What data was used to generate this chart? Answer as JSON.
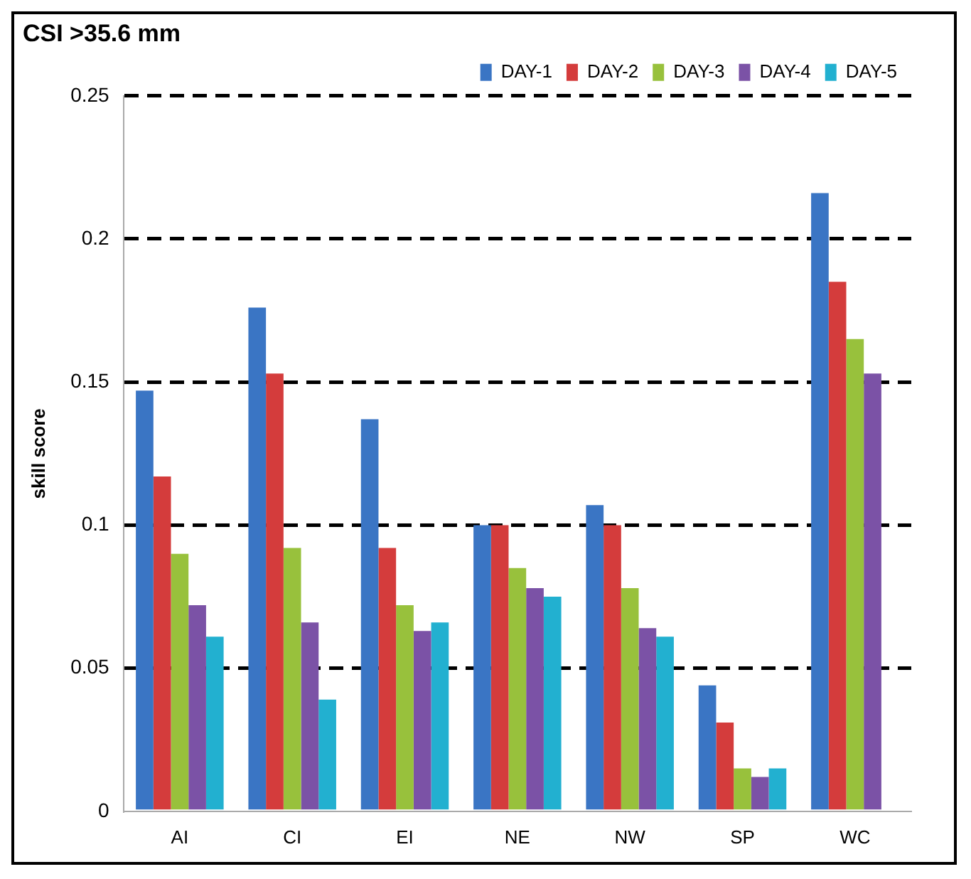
{
  "chart_data": {
    "type": "bar",
    "title": "CSI >35.6 mm",
    "ylabel": "skill score",
    "categories": [
      "AI",
      "CI",
      "EI",
      "NE",
      "NW",
      "SP",
      "WC"
    ],
    "series": [
      {
        "name": "DAY-1",
        "color": "#3a75c4",
        "values": [
          0.147,
          0.176,
          0.137,
          0.1,
          0.107,
          0.044,
          0.216
        ]
      },
      {
        "name": "DAY-2",
        "color": "#d43c3c",
        "values": [
          0.117,
          0.153,
          0.092,
          0.1,
          0.1,
          0.031,
          0.185
        ]
      },
      {
        "name": "DAY-3",
        "color": "#98c13c",
        "values": [
          0.09,
          0.092,
          0.072,
          0.085,
          0.078,
          0.015,
          0.165
        ]
      },
      {
        "name": "DAY-4",
        "color": "#7b52a6",
        "values": [
          0.072,
          0.066,
          0.063,
          0.078,
          0.064,
          0.012,
          0.153
        ]
      },
      {
        "name": "DAY-5",
        "color": "#22b0d0",
        "values": [
          0.061,
          0.039,
          0.066,
          0.075,
          0.061,
          0.015,
          null
        ]
      }
    ],
    "ylim": [
      0,
      0.25
    ],
    "yticks": [
      0,
      0.05,
      0.1,
      0.15,
      0.2,
      0.25
    ],
    "grid": "y",
    "legend": "top right"
  }
}
